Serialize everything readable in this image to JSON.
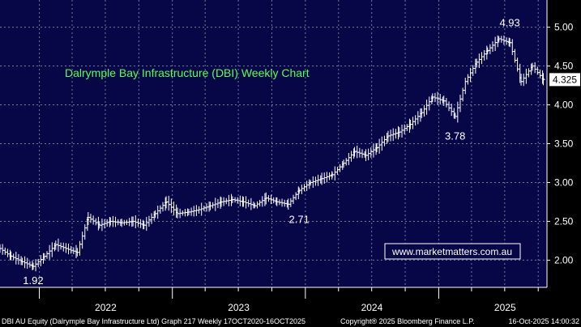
{
  "chart_data": {
    "type": "ohlc",
    "title": "Dalrymple Bay Infrastructure (DBI) Weekly Chart",
    "watermark": "www.marketmatters.com.au",
    "y_ticks": [
      "2.00",
      "2.50",
      "3.00",
      "3.50",
      "4.00",
      "4.50",
      "5.00"
    ],
    "x_ticks": [
      "2022",
      "2023",
      "2024",
      "2025"
    ],
    "ylim": [
      1.65,
      5.35
    ],
    "last_price": "4.325",
    "annotations": [
      {
        "text": "1.92",
        "x": "2021-12",
        "y": 1.92
      },
      {
        "text": "2.71",
        "x": "2023-12",
        "y": 2.71
      },
      {
        "text": "3.78",
        "x": "2025-02",
        "y": 3.78
      },
      {
        "text": "4.93",
        "x": "2025-07",
        "y": 4.93
      }
    ],
    "series": [
      {
        "values": [
          [
            "2021-09",
            2.15
          ],
          [
            "2021-10",
            2.05
          ],
          [
            "2021-11",
            1.98
          ],
          [
            "2021-12",
            1.92
          ],
          [
            "2022-01",
            2.05
          ],
          [
            "2022-02",
            2.2
          ],
          [
            "2022-03",
            2.15
          ],
          [
            "2022-04",
            2.1
          ],
          [
            "2022-05",
            2.55
          ],
          [
            "2022-06",
            2.45
          ],
          [
            "2022-07",
            2.5
          ],
          [
            "2022-08",
            2.48
          ],
          [
            "2022-09",
            2.5
          ],
          [
            "2022-10",
            2.45
          ],
          [
            "2022-11",
            2.6
          ],
          [
            "2022-12",
            2.75
          ],
          [
            "2023-01",
            2.6
          ],
          [
            "2023-02",
            2.62
          ],
          [
            "2023-03",
            2.65
          ],
          [
            "2023-04",
            2.7
          ],
          [
            "2023-05",
            2.75
          ],
          [
            "2023-06",
            2.78
          ],
          [
            "2023-07",
            2.75
          ],
          [
            "2023-08",
            2.7
          ],
          [
            "2023-09",
            2.8
          ],
          [
            "2023-10",
            2.75
          ],
          [
            "2023-11",
            2.72
          ],
          [
            "2023-12",
            2.9
          ],
          [
            "2024-01",
            3.0
          ],
          [
            "2024-02",
            3.05
          ],
          [
            "2024-03",
            3.1
          ],
          [
            "2024-04",
            3.25
          ],
          [
            "2024-05",
            3.4
          ],
          [
            "2024-06",
            3.35
          ],
          [
            "2024-07",
            3.45
          ],
          [
            "2024-08",
            3.6
          ],
          [
            "2024-09",
            3.65
          ],
          [
            "2024-10",
            3.75
          ],
          [
            "2024-11",
            3.9
          ],
          [
            "2024-12",
            4.1
          ],
          [
            "2025-01",
            4.05
          ],
          [
            "2025-02",
            3.85
          ],
          [
            "2025-03",
            4.3
          ],
          [
            "2025-04",
            4.55
          ],
          [
            "2025-05",
            4.7
          ],
          [
            "2025-06",
            4.85
          ],
          [
            "2025-07",
            4.8
          ],
          [
            "2025-08",
            4.3
          ],
          [
            "2025-09",
            4.5
          ],
          [
            "2025-10",
            4.325
          ]
        ]
      }
    ]
  },
  "footer": {
    "left": "DBI AU Equity (Dalrymple Bay Infrastructure Ltd) Graph 217 Weekly 17OCT2020-16OCT2025",
    "center": "Copyright® 2025 Bloomberg Finance L.P.",
    "right": "16-Oct-2025 14:00:32"
  },
  "colors": {
    "plot_bg": "#070748",
    "axis_bg": "#000000",
    "price_line": "#ffffff",
    "grid": "#6d7a99",
    "title": "#55ff55",
    "last_price_bg": "#ffffff"
  }
}
